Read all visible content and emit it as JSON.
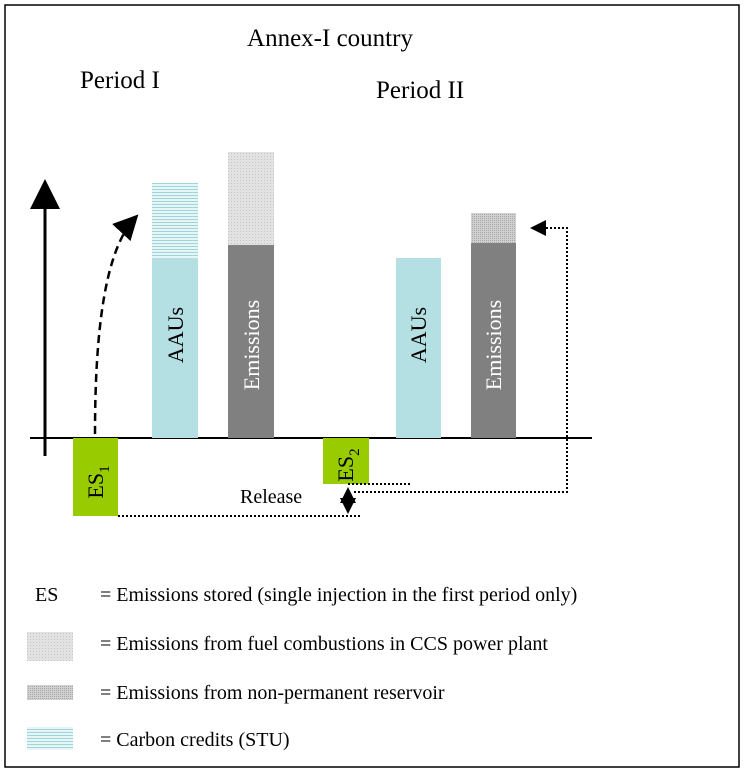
{
  "title": "Annex-I country",
  "periods": [
    "Period I",
    "Period II"
  ],
  "bars": [
    "AAUs",
    "Emissions",
    "AAUs",
    "Emissions"
  ],
  "stored": [
    {
      "label": "ES",
      "subscript": "1"
    },
    {
      "label": "ES",
      "subscript": "2"
    }
  ],
  "release": "Release",
  "legend": [
    {
      "symbol": "ES",
      "text": "= Emissions stored (single injection in the first period only)"
    },
    {
      "text": "= Emissions from fuel combustions in CCS power plant"
    },
    {
      "text": "= Emissions from non-permanent reservoir"
    },
    {
      "text": "= Carbon credits (STU)"
    }
  ]
}
